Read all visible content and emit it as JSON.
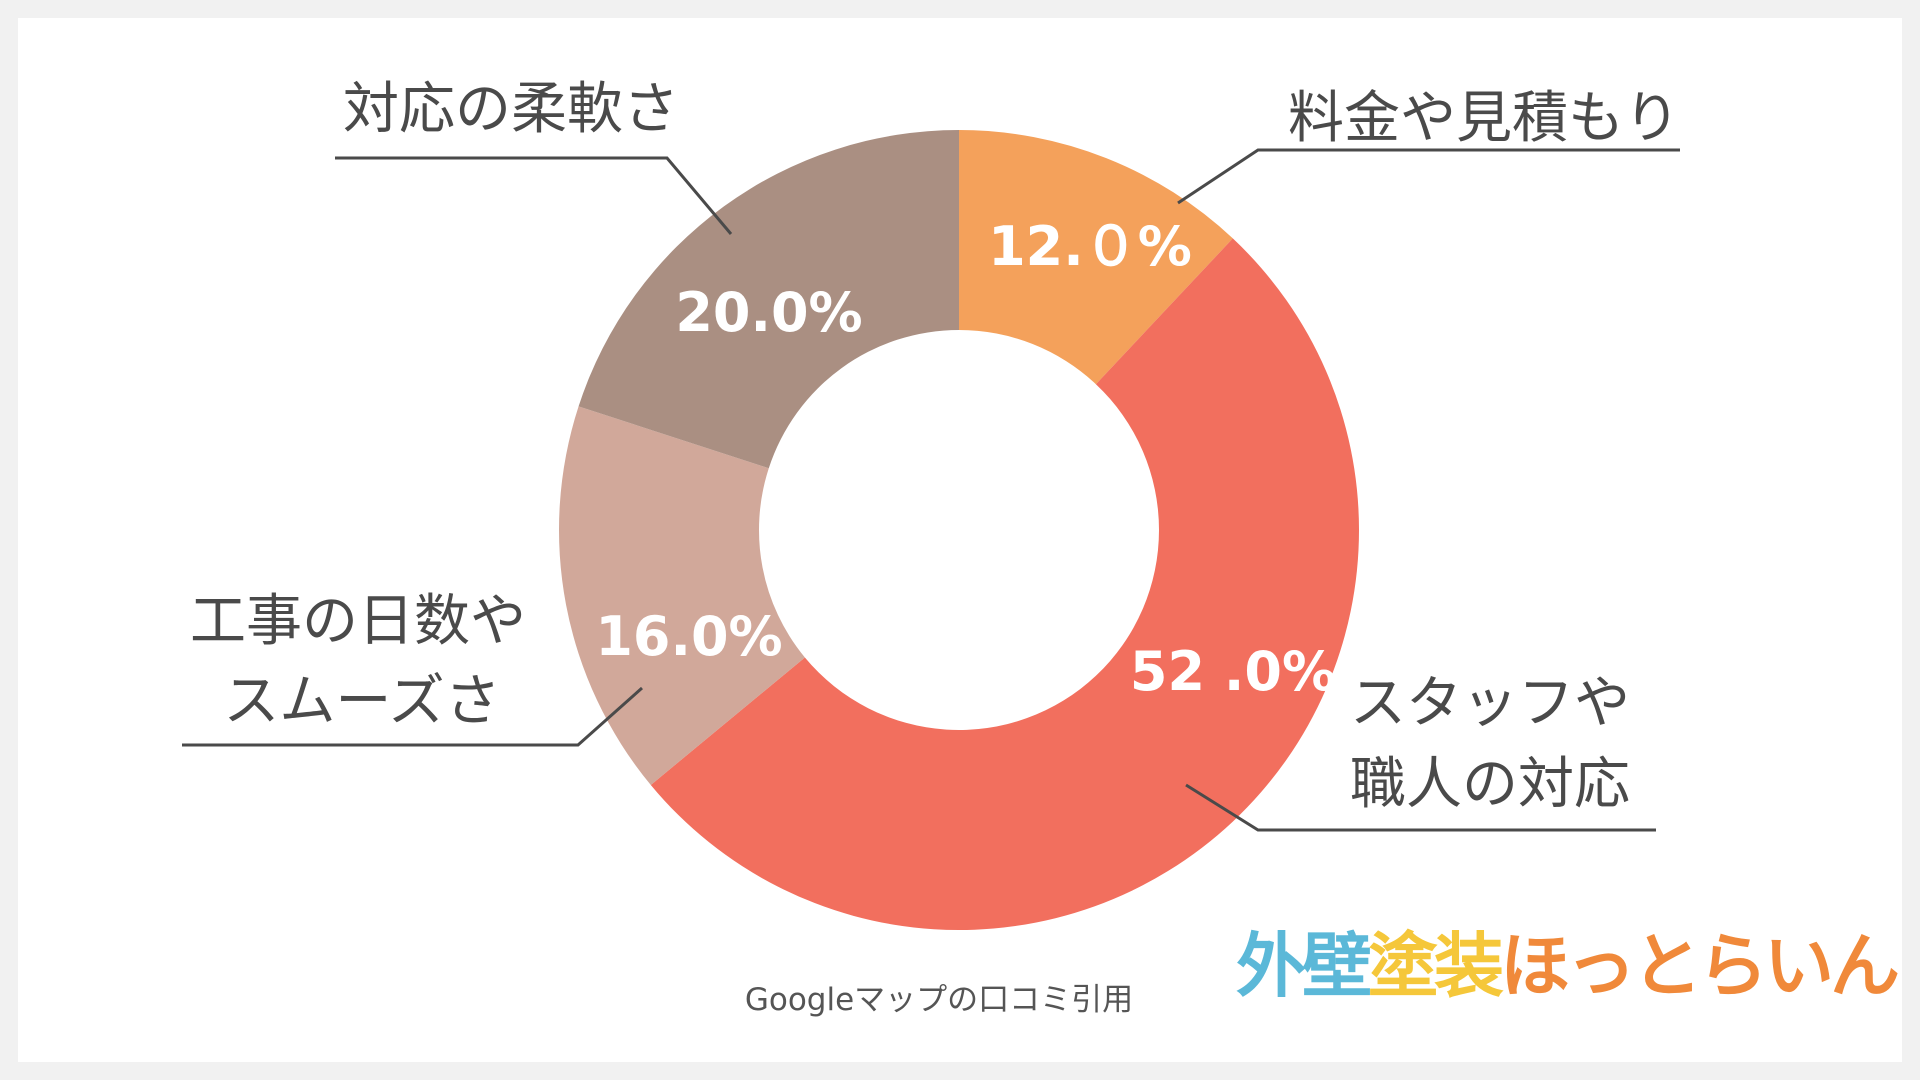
{
  "chart_data": {
    "type": "pie",
    "donut": true,
    "categories": [
      "料金や見積もり",
      "スタッフや職人の対応",
      "工事の日数やスムーズさ",
      "対応の柔軟さ"
    ],
    "values": [
      12.0,
      52.0,
      16.0,
      20.0
    ],
    "value_labels": [
      "12.０%",
      "52 .0%",
      "16.0%",
      "20.0%"
    ],
    "label_lines": [
      [
        "料金や見積もり"
      ],
      [
        "スタッフや",
        "職人の対応"
      ],
      [
        "工事の日数や",
        "スムーズさ"
      ],
      [
        "対応の柔軟さ"
      ]
    ],
    "colors": [
      "#F4A15B",
      "#F26F5E",
      "#D1A89A",
      "#AA8F82"
    ]
  },
  "source_note": "Googleマップの口コミ引用",
  "logo": {
    "chars": [
      "外",
      "壁",
      "塗",
      "装",
      "ほ",
      "っ",
      "と",
      "ら",
      "い",
      "ん"
    ],
    "colors": [
      "#5BB8D8",
      "#5BB8D8",
      "#F5C73A",
      "#F5C73A",
      "#F0893A",
      "#F0893A",
      "#F0893A",
      "#F0893A",
      "#F0893A",
      "#F0893A"
    ]
  }
}
